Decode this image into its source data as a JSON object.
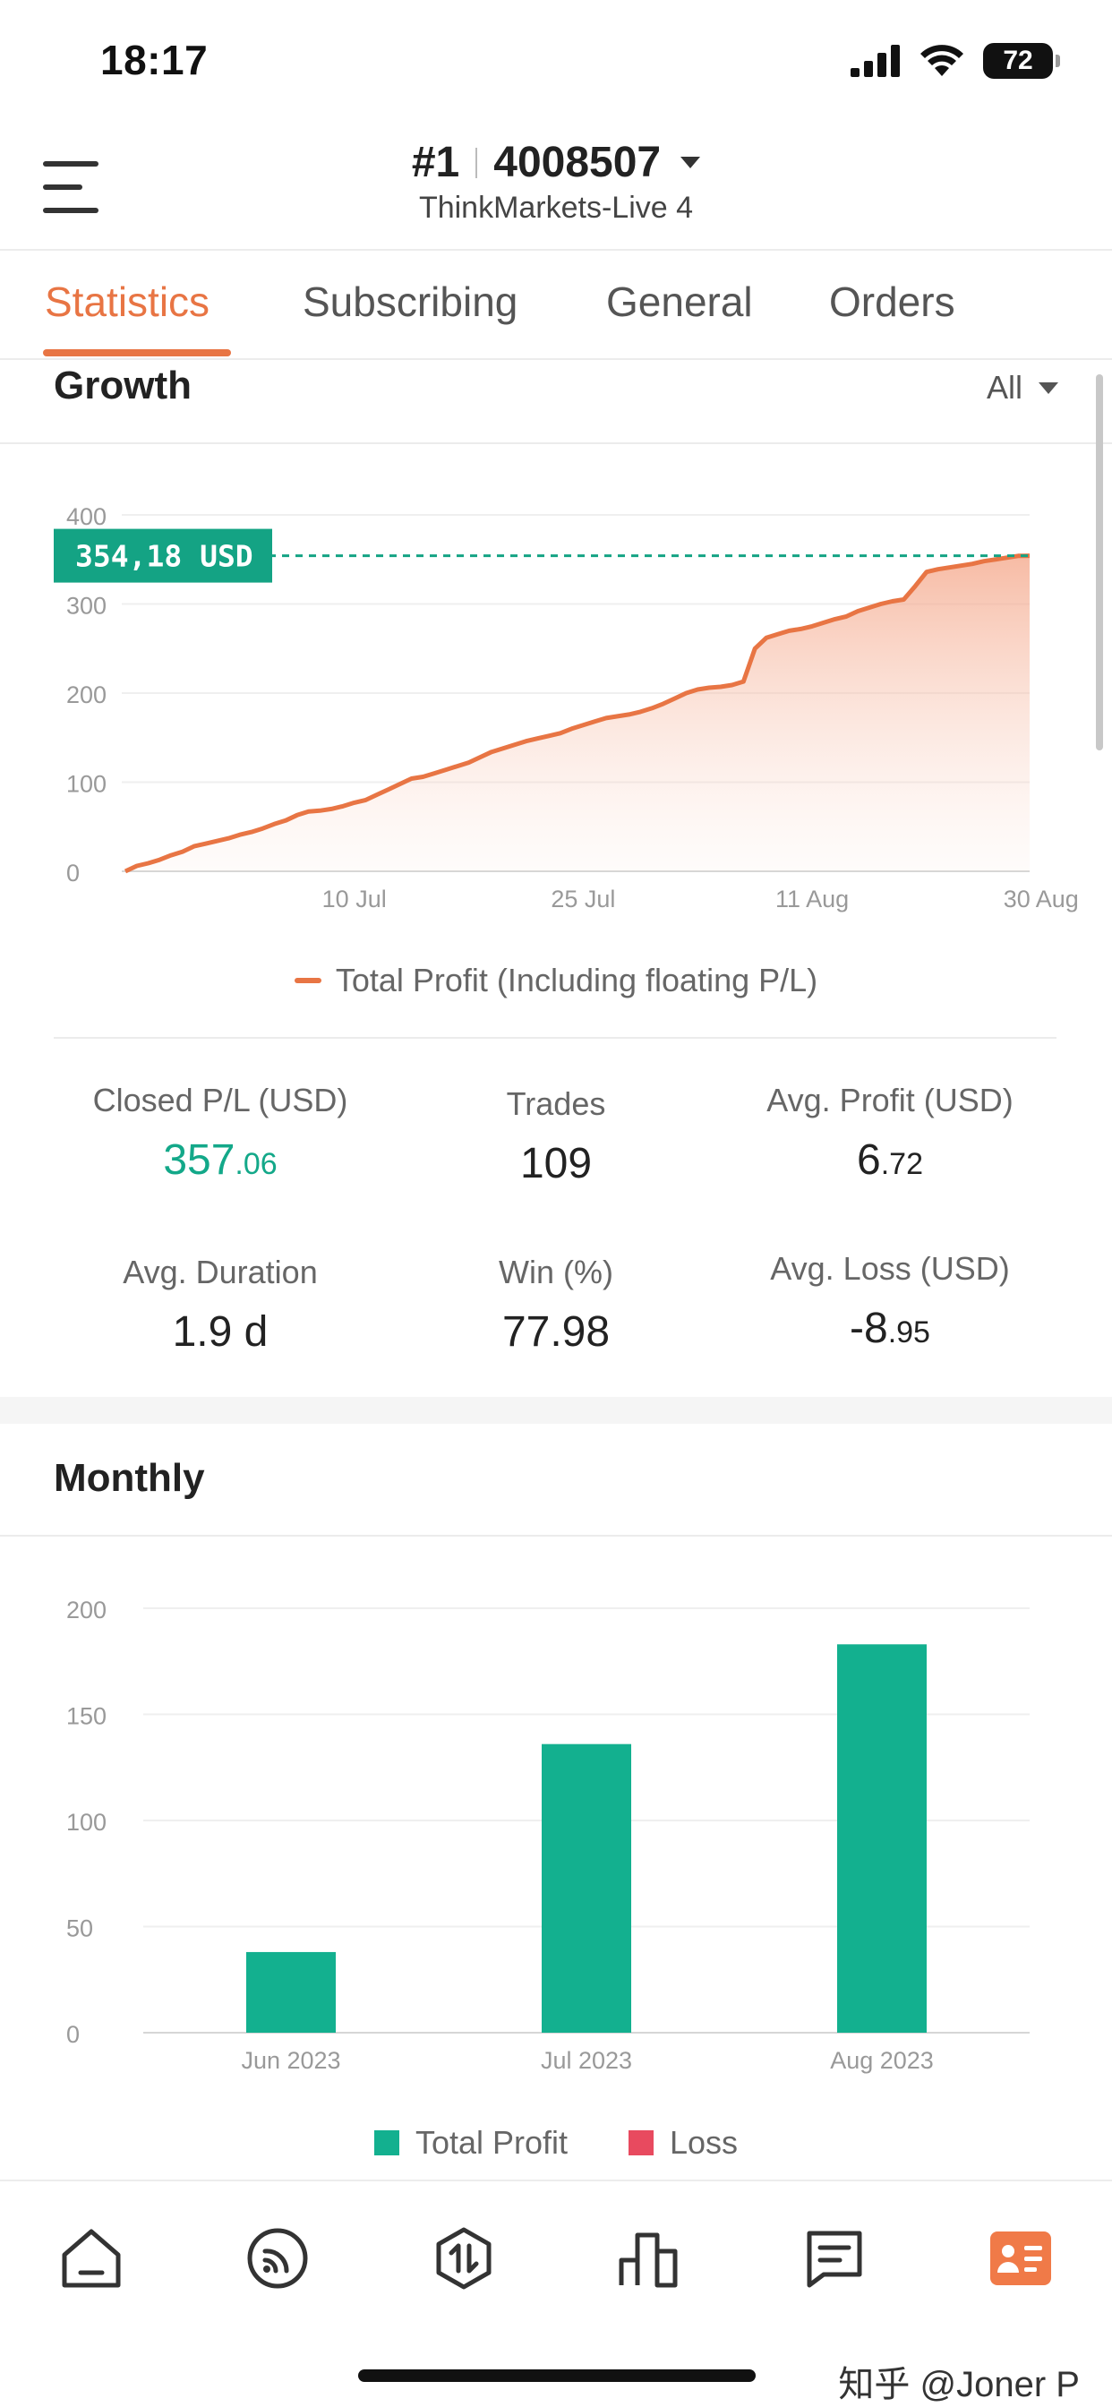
{
  "status_bar": {
    "time": "18:17",
    "battery": "72"
  },
  "header": {
    "account_rank": "#1",
    "account_number": "4008507",
    "server": "ThinkMarkets-Live 4"
  },
  "tabs": [
    {
      "label": "Statistics",
      "active": true
    },
    {
      "label": "Subscribing",
      "active": false
    },
    {
      "label": "General",
      "active": false
    },
    {
      "label": "Orders",
      "active": false
    }
  ],
  "growth": {
    "title": "Growth",
    "range_label": "All",
    "current_value_label": "354,18 USD",
    "legend": "Total Profit (Including floating P/L)"
  },
  "stats": {
    "closed_pl": {
      "label": "Closed P/L (USD)",
      "int": "357",
      "dec": ".06"
    },
    "trades": {
      "label": "Trades",
      "value": "109"
    },
    "avg_profit": {
      "label": "Avg. Profit (USD)",
      "int": "6",
      "dec": ".72"
    },
    "avg_duration": {
      "label": "Avg. Duration",
      "value": "1.9 d"
    },
    "win": {
      "label": "Win (%)",
      "value": "77.98"
    },
    "avg_loss": {
      "label": "Avg. Loss (USD)",
      "int": "-8",
      "dec": ".95"
    }
  },
  "monthly": {
    "title": "Monthly",
    "legend_profit": "Total Profit",
    "legend_loss": "Loss"
  },
  "colors": {
    "accent": "#e87544",
    "profit": "#13b08f",
    "loss": "#e84a5f",
    "tag_bg": "#14a384"
  },
  "watermark": "知乎 @Joner P",
  "chart_data": [
    {
      "type": "area",
      "y_ticks": [
        0,
        100,
        200,
        300,
        400
      ],
      "ylim": [
        0,
        400
      ],
      "x_tick_labels": [
        "10 Jul",
        "25 Jul",
        "11 Aug",
        "30 Aug"
      ],
      "x_tick_index": [
        20,
        40,
        60,
        80
      ],
      "reference_value": 354.18,
      "series": [
        {
          "name": "Total Profit (Including floating P/L)",
          "values": [
            0,
            6,
            9,
            13,
            18,
            22,
            28,
            31,
            34,
            37,
            41,
            44,
            48,
            53,
            57,
            63,
            67,
            68,
            70,
            73,
            77,
            80,
            86,
            92,
            98,
            104,
            106,
            110,
            114,
            118,
            122,
            128,
            134,
            138,
            142,
            146,
            149,
            152,
            155,
            160,
            164,
            168,
            172,
            174,
            176,
            179,
            183,
            188,
            194,
            200,
            204,
            206,
            207,
            209,
            213,
            250,
            262,
            266,
            270,
            272,
            275,
            279,
            283,
            286,
            292,
            296,
            300,
            303,
            305,
            320,
            336,
            339,
            341,
            343,
            345,
            348,
            350,
            352,
            354,
            354.18
          ]
        }
      ]
    },
    {
      "type": "bar",
      "categories": [
        "Jun 2023",
        "Jul 2023",
        "Aug 2023"
      ],
      "y_ticks": [
        0,
        50,
        100,
        150,
        200
      ],
      "ylim": [
        0,
        200
      ],
      "series": [
        {
          "name": "Total Profit",
          "values": [
            38,
            136,
            183
          ]
        },
        {
          "name": "Loss",
          "values": [
            0,
            0,
            0
          ]
        }
      ]
    }
  ]
}
